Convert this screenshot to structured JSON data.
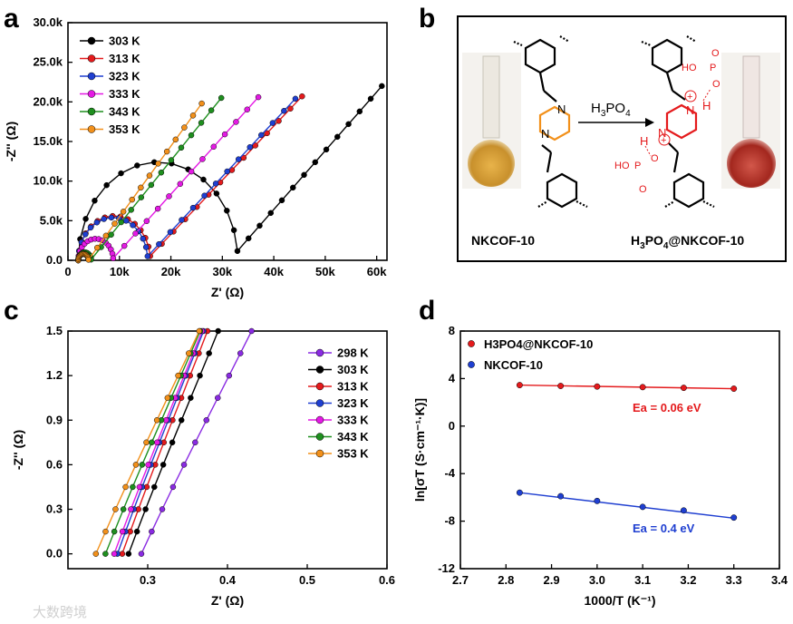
{
  "panel_letters": {
    "a": "a",
    "b": "b",
    "c": "c",
    "d": "d"
  },
  "watermark": "大数跨境",
  "chart_data": [
    {
      "panel": "a",
      "type": "line",
      "xlabel": "Z' (Ω)",
      "ylabel": "-Z'' (Ω)",
      "xlim": [
        0,
        62000
      ],
      "ylim": [
        0,
        30000
      ],
      "xticks": [
        0,
        10000,
        20000,
        30000,
        40000,
        50000,
        60000
      ],
      "xtick_labels": [
        "0",
        "10k",
        "20k",
        "30k",
        "40k",
        "50k",
        "60k"
      ],
      "yticks": [
        0,
        5000,
        10000,
        15000,
        20000,
        25000,
        30000
      ],
      "ytick_labels": [
        "0.0",
        "5.0k",
        "10.0k",
        "15.0k",
        "20.0k",
        "25.0k",
        "30.0k"
      ],
      "legend_position": "top-left",
      "series": [
        {
          "name": "303 K",
          "color": "#000000",
          "arc": [
            2000,
            33000
          ],
          "tail": [
            [
              61000,
              22000
            ]
          ]
        },
        {
          "name": "313 K",
          "color": "#e41a1c",
          "arc": [
            2000,
            16000
          ],
          "tail": [
            [
              45500,
              20700
            ]
          ]
        },
        {
          "name": "323 K",
          "color": "#1f3fd1",
          "arc": [
            2000,
            15500
          ],
          "tail": [
            [
              44200,
              20400
            ]
          ]
        },
        {
          "name": "333 K",
          "color": "#e41ae4",
          "arc": [
            2000,
            8800
          ],
          "tail": [
            [
              37000,
              20600
            ]
          ]
        },
        {
          "name": "343 K",
          "color": "#1e8f1e",
          "arc": [
            2000,
            4500
          ],
          "tail": [
            [
              29800,
              20500
            ]
          ]
        },
        {
          "name": "353 K",
          "color": "#f2901a",
          "arc": [
            2000,
            4000
          ],
          "tail": [
            [
              26000,
              19800
            ]
          ]
        }
      ]
    },
    {
      "panel": "c",
      "type": "line",
      "xlabel": "Z' (Ω)",
      "ylabel": "-Z'' (Ω)",
      "xlim": [
        0.2,
        0.6
      ],
      "ylim": [
        -0.1,
        1.5
      ],
      "xticks": [
        0.3,
        0.4,
        0.5,
        0.6
      ],
      "xtick_labels": [
        "0.3",
        "0.4",
        "0.5",
        "0.6"
      ],
      "yticks": [
        0.0,
        0.3,
        0.6,
        0.9,
        1.2,
        1.5
      ],
      "ytick_labels": [
        "0.0",
        "0.3",
        "0.6",
        "0.9",
        "1.2",
        "1.5"
      ],
      "legend_position": "top-right",
      "series": [
        {
          "name": "298 K",
          "color": "#8a2be2",
          "x0": 0.292,
          "x1": 0.42
        },
        {
          "name": "303 K",
          "color": "#000000",
          "x0": 0.276,
          "x1": 0.38
        },
        {
          "name": "313 K",
          "color": "#e41a1c",
          "x0": 0.268,
          "x1": 0.367
        },
        {
          "name": "323 K",
          "color": "#1f3fd1",
          "x0": 0.262,
          "x1": 0.362
        },
        {
          "name": "333 K",
          "color": "#e41ae4",
          "x0": 0.258,
          "x1": 0.36
        },
        {
          "name": "343 K",
          "color": "#1e8f1e",
          "x0": 0.247,
          "x1": 0.357
        },
        {
          "name": "353 K",
          "color": "#f2901a",
          "x0": 0.235,
          "x1": 0.355
        }
      ]
    },
    {
      "panel": "d",
      "type": "scatter",
      "xlabel": "1000/T (K⁻¹)",
      "ylabel": "ln[σT (S·cm⁻¹·K)]",
      "xlim": [
        2.7,
        3.4
      ],
      "ylim": [
        -12,
        8
      ],
      "xticks": [
        2.7,
        2.8,
        2.9,
        3.0,
        3.1,
        3.2,
        3.3,
        3.4
      ],
      "xtick_labels": [
        "2.7",
        "2.8",
        "2.9",
        "3.0",
        "3.1",
        "3.2",
        "3.3",
        "3.4"
      ],
      "yticks": [
        -12,
        -8,
        -4,
        0,
        4,
        8
      ],
      "ytick_labels": [
        "-12",
        "-8",
        "-4",
        "0",
        "4",
        "8"
      ],
      "legend_position": "top-left",
      "series": [
        {
          "name": "H3PO4@NKCOF-10",
          "color": "#e41a1c",
          "x": [
            2.83,
            2.92,
            3.0,
            3.1,
            3.19,
            3.3
          ],
          "y": [
            3.45,
            3.38,
            3.33,
            3.28,
            3.22,
            3.15
          ],
          "fit": [
            [
              2.83,
              3.45
            ],
            [
              3.3,
              3.15
            ]
          ],
          "annotation": "Ea = 0.06 eV"
        },
        {
          "name": "NKCOF-10",
          "color": "#1f3fd1",
          "x": [
            2.83,
            2.92,
            3.0,
            3.1,
            3.19,
            3.3
          ],
          "y": [
            -5.6,
            -5.9,
            -6.3,
            -6.8,
            -7.1,
            -7.7
          ],
          "fit": [
            [
              2.83,
              -5.6
            ],
            [
              3.3,
              -7.75
            ]
          ],
          "annotation": "Ea = 0.4 eV"
        }
      ]
    }
  ],
  "scheme": {
    "reagent": "H3PO4",
    "left_label": "NKCOF-10",
    "right_label": "H3PO4@NKCOF-10",
    "atom_N": "N",
    "atom_H": "H",
    "acid_OH": "HO",
    "acid_P": "P",
    "acid_O": "O",
    "charge_plus": "+",
    "charge_minus": "−"
  }
}
